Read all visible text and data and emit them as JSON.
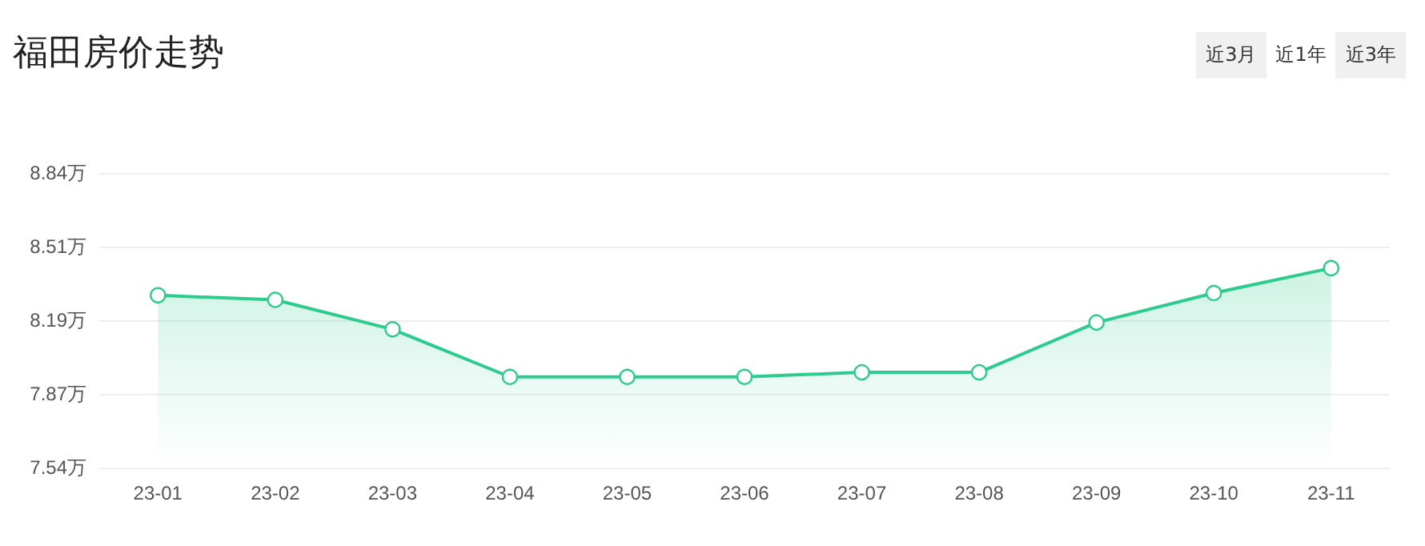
{
  "chart_data": {
    "type": "area",
    "title": "福田房价走势",
    "categories": [
      "23-01",
      "23-02",
      "23-03",
      "23-04",
      "23-05",
      "23-06",
      "23-07",
      "23-08",
      "23-09",
      "23-10",
      "23-11"
    ],
    "series": [
      {
        "color": "#2ecb8f",
        "values": [
          8.3,
          8.28,
          8.15,
          7.94,
          7.94,
          7.94,
          7.96,
          7.96,
          8.18,
          8.31,
          8.42
        ]
      }
    ],
    "ylim": [
      7.54,
      8.84
    ],
    "yticks": [
      {
        "value": 7.54,
        "label": "7.54万"
      },
      {
        "value": 7.865,
        "label": "7.87万"
      },
      {
        "value": 8.19,
        "label": "8.19万"
      },
      {
        "value": 8.515,
        "label": "8.51万"
      },
      {
        "value": 8.84,
        "label": "8.84万"
      }
    ],
    "grid": "y",
    "marker": "circle",
    "line_style": "solid",
    "annotations": [
      "近3月",
      "近1年",
      "近3年"
    ]
  }
}
